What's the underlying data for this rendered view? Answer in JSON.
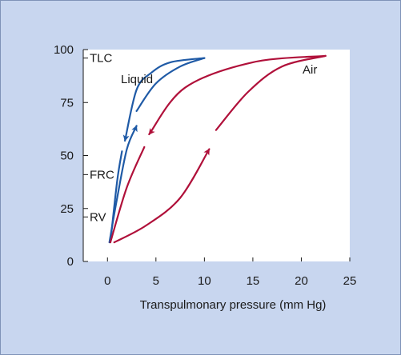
{
  "chart_data": {
    "type": "line",
    "xlabel": "Transpulmonary pressure (mm Hg)",
    "ylabel": "",
    "xlim": [
      -2.5,
      25
    ],
    "ylim": [
      0,
      100
    ],
    "x_ticks": [
      0,
      5,
      10,
      15,
      20,
      25
    ],
    "y_ticks": [
      0,
      25,
      50,
      75,
      100
    ],
    "y_annotations": [
      {
        "label": "TLC",
        "y": 96
      },
      {
        "label": "FRC",
        "y": 41
      },
      {
        "label": "RV",
        "y": 21
      }
    ],
    "series": [
      {
        "name": "Liquid",
        "color": "#1f5aa6",
        "segments": [
          {
            "points": [
              [
                0.2,
                9
              ],
              [
                1.0,
                30
              ],
              [
                2.0,
                53
              ],
              [
                3.0,
                64
              ]
            ],
            "arrow": "end"
          },
          {
            "points": [
              [
                3.0,
                71
              ],
              [
                5.0,
                84
              ],
              [
                7.5,
                92
              ],
              [
                10.0,
                96
              ]
            ],
            "arrow": "none"
          },
          {
            "points": [
              [
                10.0,
                96
              ],
              [
                6.5,
                94
              ],
              [
                4.5,
                89
              ],
              [
                3.0,
                81
              ],
              [
                1.8,
                57
              ]
            ],
            "arrow": "end"
          },
          {
            "points": [
              [
                1.5,
                52
              ],
              [
                1.0,
                38
              ],
              [
                0.3,
                9
              ]
            ],
            "arrow": "none"
          }
        ]
      },
      {
        "name": "Air",
        "color": "#b0103a",
        "segments": [
          {
            "points": [
              [
                0.7,
                9
              ],
              [
                4.0,
                17
              ],
              [
                7.5,
                30
              ],
              [
                10.5,
                53
              ]
            ],
            "arrow": "end"
          },
          {
            "points": [
              [
                11.2,
                62
              ],
              [
                14.5,
                80
              ],
              [
                18.0,
                92
              ],
              [
                22.5,
                97
              ]
            ],
            "arrow": "none"
          },
          {
            "points": [
              [
                22.5,
                97
              ],
              [
                15.0,
                94
              ],
              [
                8.0,
                82
              ],
              [
                4.3,
                60
              ]
            ],
            "arrow": "end"
          },
          {
            "points": [
              [
                3.8,
                54
              ],
              [
                2.0,
                35
              ],
              [
                0.3,
                9
              ]
            ],
            "arrow": "none"
          }
        ]
      }
    ]
  },
  "labels": {
    "liquid": "Liquid",
    "air": "Air"
  }
}
